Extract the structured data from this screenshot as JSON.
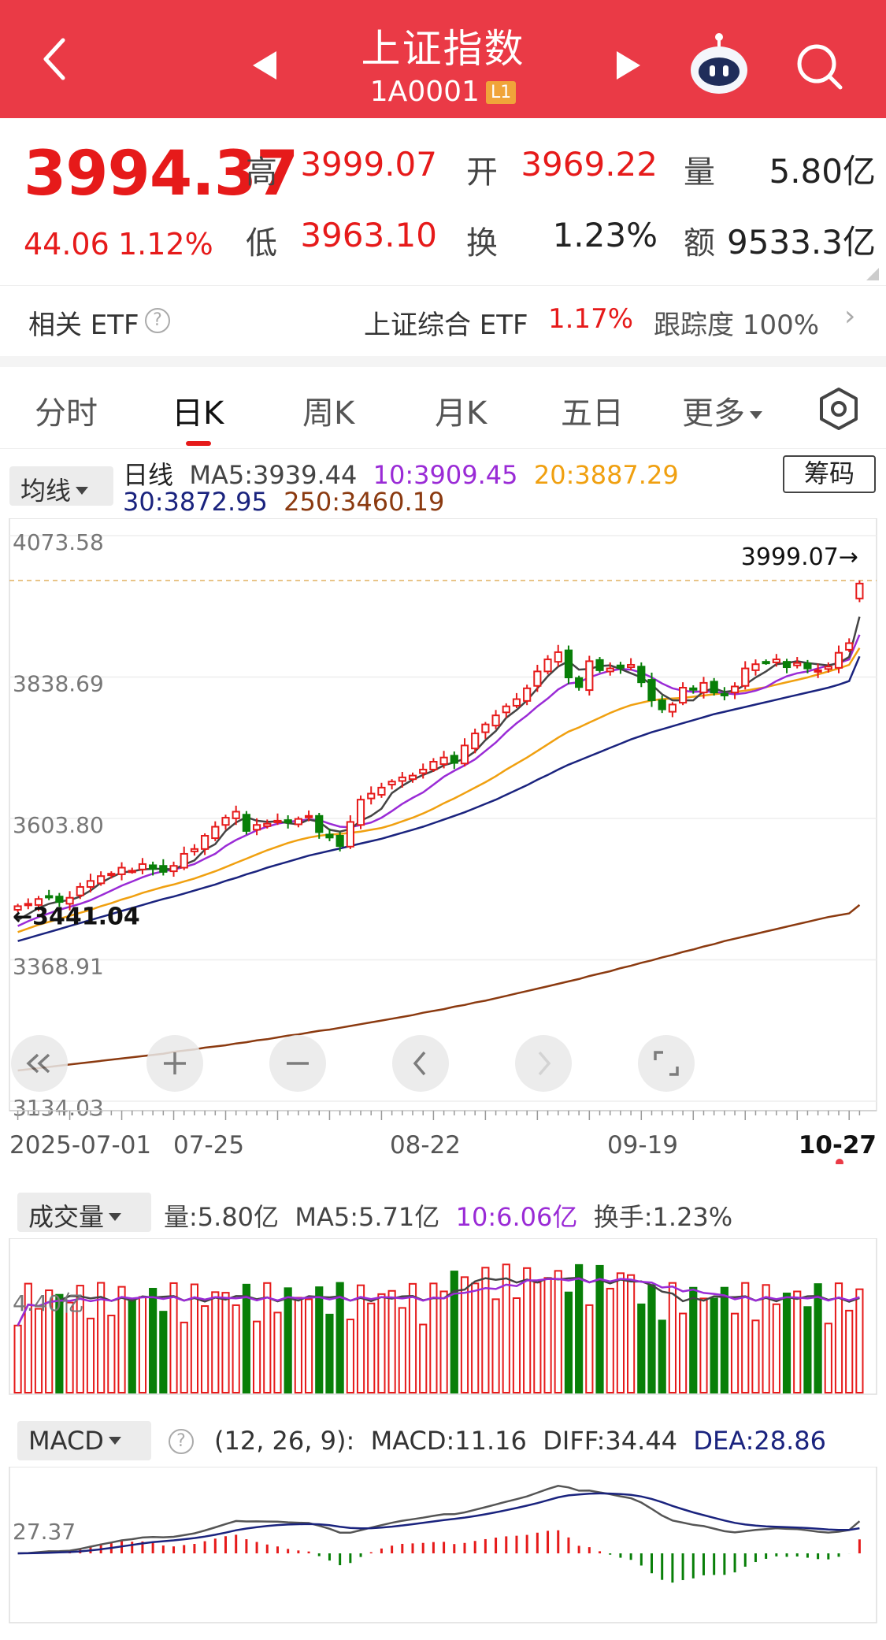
{
  "header": {
    "title": "上证指数",
    "code": "1A0001",
    "level_badge": "L1"
  },
  "quote": {
    "price": "3994.37",
    "change": "44.06",
    "change_pct": "1.12%",
    "high_label": "高",
    "high": "3999.07",
    "open_label": "开",
    "open": "3969.22",
    "volume_label": "量",
    "volume": "5.80亿",
    "low_label": "低",
    "low": "3963.10",
    "turnover_label": "换",
    "turnover": "1.23%",
    "amount_label": "额",
    "amount": "9533.3亿"
  },
  "etf": {
    "label": "相关 ETF",
    "name": "上证综合 ETF",
    "pct": "1.17%",
    "tracking": "跟踪度  100%"
  },
  "tabs": [
    "分时",
    "日K",
    "周K",
    "月K",
    "五日",
    "更多"
  ],
  "active_tab": 1,
  "ma_legend": {
    "selector": "均线",
    "period": "日线",
    "ma5": "MA5:3939.44",
    "ma10": "10:3909.45",
    "ma20": "20:3887.29",
    "ma30": "30:3872.95",
    "ma250": "250:3460.19",
    "chip_button": "筹码"
  },
  "colors": {
    "up": "#e61a1a",
    "down": "#087f08",
    "ma5": "#444444",
    "ma10": "#9a2bd6",
    "ma20": "#f0a010",
    "ma30": "#1a237e",
    "ma250": "#8b3a10",
    "header_bg": "#ea3a46"
  },
  "kline": {
    "y_labels": [
      "4073.58",
      "3838.69",
      "3603.80",
      "3368.91",
      "3134.03"
    ],
    "y_range": [
      3134.03,
      4073.58
    ],
    "high_marker": "3999.07→",
    "low_marker": "←3441.04",
    "x_labels": [
      "2025-07-01",
      "07-25",
      "08-22",
      "09-19",
      "10-27"
    ],
    "count": 82,
    "closes": [
      3458,
      3462,
      3470,
      3473,
      3465,
      3472,
      3490,
      3500,
      3508,
      3512,
      3522,
      3517,
      3528,
      3520,
      3515,
      3525,
      3545,
      3553,
      3575,
      3590,
      3605,
      3615,
      3583,
      3593,
      3595,
      3600,
      3597,
      3603,
      3608,
      3581,
      3572,
      3558,
      3598,
      3635,
      3645,
      3655,
      3665,
      3672,
      3675,
      3685,
      3698,
      3705,
      3696,
      3725,
      3745,
      3760,
      3775,
      3790,
      3802,
      3820,
      3848,
      3868,
      3880,
      3838,
      3822,
      3865,
      3850,
      3853,
      3854,
      3859,
      3830,
      3800,
      3785,
      3793,
      3821,
      3818,
      3829,
      3813,
      3808,
      3823,
      3853,
      3860,
      3863,
      3868,
      3855,
      3862,
      3853,
      3850,
      3856,
      3879,
      3895,
      3994
    ],
    "ma5": [
      3435,
      3445,
      3455,
      3462,
      3466,
      3468,
      3474,
      3484,
      3497,
      3506,
      3514,
      3516,
      3519,
      3520,
      3520,
      3519,
      3527,
      3534,
      3552,
      3561,
      3583,
      3597,
      3606,
      3600,
      3598,
      3599,
      3596,
      3594,
      3602,
      3598,
      3585,
      3582,
      3586,
      3600,
      3608,
      3620,
      3646,
      3658,
      3668,
      3676,
      3683,
      3692,
      3697,
      3703,
      3715,
      3734,
      3749,
      3771,
      3784,
      3800,
      3820,
      3840,
      3856,
      3865,
      3851,
      3852,
      3857,
      3858,
      3852,
      3845,
      3838,
      3826,
      3810,
      3800,
      3800,
      3800,
      3815,
      3820,
      3814,
      3816,
      3826,
      3838,
      3848,
      3860,
      3862,
      3865,
      3862,
      3860,
      3858,
      3862,
      3872,
      3939
    ],
    "ma10": [
      3425,
      3433,
      3440,
      3446,
      3452,
      3457,
      3462,
      3468,
      3476,
      3484,
      3492,
      3499,
      3506,
      3512,
      3516,
      3519,
      3523,
      3528,
      3537,
      3545,
      3558,
      3568,
      3576,
      3584,
      3590,
      3595,
      3598,
      3600,
      3602,
      3601,
      3595,
      3590,
      3589,
      3593,
      3597,
      3605,
      3616,
      3628,
      3638,
      3647,
      3660,
      3673,
      3683,
      3692,
      3702,
      3716,
      3730,
      3747,
      3762,
      3775,
      3790,
      3803,
      3818,
      3828,
      3830,
      3838,
      3844,
      3849,
      3852,
      3851,
      3846,
      3838,
      3828,
      3820,
      3816,
      3814,
      3815,
      3814,
      3812,
      3810,
      3812,
      3816,
      3822,
      3832,
      3840,
      3845,
      3848,
      3853,
      3858,
      3862,
      3868,
      3909
    ],
    "ma20": [
      3415,
      3421,
      3427,
      3432,
      3437,
      3442,
      3447,
      3452,
      3458,
      3463,
      3469,
      3474,
      3480,
      3485,
      3490,
      3494,
      3499,
      3504,
      3510,
      3516,
      3523,
      3530,
      3537,
      3544,
      3551,
      3557,
      3563,
      3568,
      3572,
      3575,
      3577,
      3578,
      3580,
      3582,
      3585,
      3588,
      3593,
      3599,
      3605,
      3612,
      3620,
      3629,
      3637,
      3646,
      3655,
      3664,
      3674,
      3685,
      3695,
      3705,
      3716,
      3727,
      3738,
      3748,
      3755,
      3763,
      3771,
      3779,
      3786,
      3792,
      3796,
      3800,
      3802,
      3803,
      3804,
      3806,
      3808,
      3810,
      3812,
      3814,
      3816,
      3819,
      3822,
      3826,
      3830,
      3834,
      3838,
      3843,
      3848,
      3853,
      3859,
      3887
    ],
    "ma30": [
      3400,
      3405,
      3410,
      3415,
      3420,
      3425,
      3430,
      3435,
      3440,
      3445,
      3450,
      3455,
      3460,
      3465,
      3470,
      3474,
      3479,
      3484,
      3489,
      3494,
      3500,
      3505,
      3511,
      3516,
      3522,
      3527,
      3532,
      3537,
      3542,
      3546,
      3550,
      3554,
      3558,
      3562,
      3566,
      3570,
      3575,
      3580,
      3585,
      3590,
      3596,
      3602,
      3608,
      3614,
      3621,
      3628,
      3635,
      3643,
      3651,
      3659,
      3668,
      3676,
      3685,
      3693,
      3700,
      3707,
      3714,
      3721,
      3728,
      3735,
      3741,
      3747,
      3752,
      3757,
      3762,
      3767,
      3772,
      3777,
      3781,
      3785,
      3789,
      3793,
      3797,
      3801,
      3805,
      3809,
      3813,
      3817,
      3821,
      3826,
      3832,
      3873
    ],
    "ma250": [
      3185,
      3187,
      3189,
      3191,
      3193,
      3195,
      3197,
      3199,
      3201,
      3203,
      3205,
      3207,
      3209,
      3211,
      3213,
      3216,
      3218,
      3220,
      3223,
      3225,
      3227,
      3230,
      3232,
      3235,
      3237,
      3240,
      3243,
      3245,
      3248,
      3251,
      3253,
      3256,
      3259,
      3262,
      3265,
      3268,
      3271,
      3274,
      3277,
      3281,
      3284,
      3287,
      3291,
      3294,
      3298,
      3301,
      3305,
      3309,
      3313,
      3317,
      3321,
      3325,
      3329,
      3333,
      3337,
      3342,
      3346,
      3350,
      3355,
      3359,
      3364,
      3368,
      3373,
      3377,
      3382,
      3386,
      3391,
      3395,
      3400,
      3404,
      3408,
      3412,
      3416,
      3420,
      3424,
      3428,
      3432,
      3436,
      3440,
      3443,
      3446,
      3460
    ]
  },
  "volume": {
    "selector": "成交量",
    "vol": "量:5.80亿",
    "ma5": "MA5:5.71亿",
    "ma10": "10:6.06亿",
    "turnover": "换手:1.23%",
    "y_label": "4.40亿"
  },
  "macd": {
    "selector": "MACD",
    "params": "(12, 26, 9):",
    "macd": "MACD:11.16",
    "diff": "DIFF:34.44",
    "dea": "DEA:28.86",
    "y_label": "27.37"
  }
}
